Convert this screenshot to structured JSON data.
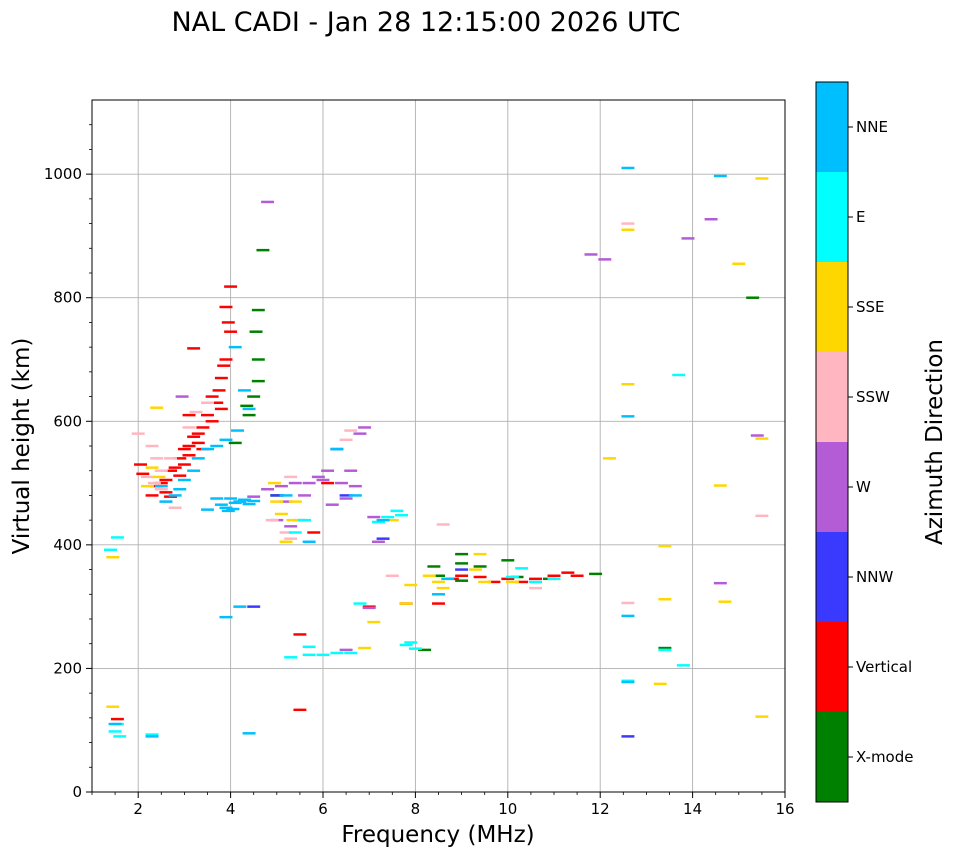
{
  "chart_data": {
    "type": "scatter",
    "title": "NAL CADI - Jan 28 12:15:00 2026 UTC",
    "xlabel": "Frequency (MHz)",
    "ylabel": "Virtual height (km)",
    "xlim": [
      1,
      16
    ],
    "ylim": [
      0,
      1120
    ],
    "xticks": [
      2,
      4,
      6,
      8,
      10,
      12,
      14,
      16
    ],
    "yticks": [
      0,
      200,
      400,
      600,
      800,
      1000
    ],
    "grid": true,
    "colorbar": {
      "label": "Azimuth Direction",
      "categories": [
        {
          "name": "X-mode",
          "color": "#008000"
        },
        {
          "name": "Vertical",
          "color": "#ff0000"
        },
        {
          "name": "NNW",
          "color": "#3a3aff"
        },
        {
          "name": "W",
          "color": "#b45bd6"
        },
        {
          "name": "SSW",
          "color": "#ffb6c1"
        },
        {
          "name": "SSE",
          "color": "#ffd700"
        },
        {
          "name": "E",
          "color": "#00ffff"
        },
        {
          "name": "NNE",
          "color": "#00bfff"
        }
      ]
    },
    "series": [
      {
        "name": "X-mode",
        "points": [
          [
            4.6,
            780
          ],
          [
            4.55,
            745
          ],
          [
            4.6,
            700
          ],
          [
            4.6,
            665
          ],
          [
            4.5,
            640
          ],
          [
            4.4,
            610
          ],
          [
            4.35,
            625
          ],
          [
            4.1,
            565
          ],
          [
            4.7,
            877
          ],
          [
            8.2,
            230
          ],
          [
            8.5,
            350
          ],
          [
            8.4,
            365
          ],
          [
            9.0,
            385
          ],
          [
            9.0,
            370
          ],
          [
            9.0,
            342
          ],
          [
            9.4,
            365
          ],
          [
            10.0,
            375
          ],
          [
            10.2,
            348
          ],
          [
            10.9,
            345
          ],
          [
            11.9,
            353
          ],
          [
            13.4,
            233
          ],
          [
            15.3,
            800
          ],
          [
            5.0,
            480
          ]
        ]
      },
      {
        "name": "Vertical",
        "points": [
          [
            4.0,
            818
          ],
          [
            3.9,
            785
          ],
          [
            3.95,
            760
          ],
          [
            4.0,
            745
          ],
          [
            3.9,
            700
          ],
          [
            3.85,
            690
          ],
          [
            3.8,
            670
          ],
          [
            3.75,
            650
          ],
          [
            3.6,
            640
          ],
          [
            3.7,
            630
          ],
          [
            3.8,
            620
          ],
          [
            3.5,
            610
          ],
          [
            3.6,
            600
          ],
          [
            3.4,
            590
          ],
          [
            3.3,
            580
          ],
          [
            3.2,
            575
          ],
          [
            3.3,
            565
          ],
          [
            3.1,
            560
          ],
          [
            3.0,
            555
          ],
          [
            3.1,
            545
          ],
          [
            2.9,
            540
          ],
          [
            3.0,
            530
          ],
          [
            2.8,
            525
          ],
          [
            2.7,
            520
          ],
          [
            2.9,
            512
          ],
          [
            2.6,
            505
          ],
          [
            2.5,
            500
          ],
          [
            2.4,
            495
          ],
          [
            2.6,
            485
          ],
          [
            2.7,
            478
          ],
          [
            2.05,
            530
          ],
          [
            2.1,
            515
          ],
          [
            3.2,
            718
          ],
          [
            3.1,
            610
          ],
          [
            3.4,
            555
          ],
          [
            2.3,
            480
          ],
          [
            1.55,
            118
          ],
          [
            5.5,
            255
          ],
          [
            5.5,
            133
          ],
          [
            7.0,
            300
          ],
          [
            7.8,
            305
          ],
          [
            8.5,
            305
          ],
          [
            8.8,
            345
          ],
          [
            9.0,
            350
          ],
          [
            9.4,
            348
          ],
          [
            9.7,
            340
          ],
          [
            10.0,
            345
          ],
          [
            10.3,
            340
          ],
          [
            10.6,
            345
          ],
          [
            11.0,
            350
          ],
          [
            11.3,
            355
          ],
          [
            11.5,
            350
          ],
          [
            5.8,
            420
          ],
          [
            6.1,
            500
          ]
        ]
      },
      {
        "name": "NNW",
        "points": [
          [
            12.6,
            90
          ],
          [
            7.3,
            410
          ],
          [
            6.3,
            555
          ],
          [
            6.5,
            480
          ],
          [
            9.0,
            360
          ],
          [
            4.5,
            300
          ],
          [
            5.0,
            480
          ]
        ]
      },
      {
        "name": "W",
        "points": [
          [
            4.8,
            955
          ],
          [
            4.2,
            470
          ],
          [
            4.5,
            478
          ],
          [
            4.8,
            490
          ],
          [
            5.1,
            495
          ],
          [
            5.4,
            500
          ],
          [
            5.2,
            470
          ],
          [
            5.0,
            440
          ],
          [
            5.3,
            430
          ],
          [
            5.6,
            480
          ],
          [
            5.9,
            510
          ],
          [
            6.1,
            520
          ],
          [
            6.4,
            500
          ],
          [
            6.6,
            520
          ],
          [
            6.7,
            495
          ],
          [
            6.5,
            475
          ],
          [
            6.2,
            465
          ],
          [
            6.8,
            580
          ],
          [
            6.9,
            590
          ],
          [
            7.1,
            445
          ],
          [
            7.2,
            405
          ],
          [
            14.6,
            338
          ],
          [
            14.4,
            927
          ],
          [
            13.9,
            896
          ],
          [
            11.8,
            870
          ],
          [
            12.1,
            862
          ],
          [
            2.95,
            640
          ],
          [
            5.7,
            500
          ],
          [
            6.0,
            505
          ],
          [
            7.0,
            298
          ],
          [
            6.5,
            230
          ],
          [
            5.5,
            440
          ],
          [
            15.4,
            577
          ]
        ]
      },
      {
        "name": "SSW",
        "points": [
          [
            2.3,
            560
          ],
          [
            2.4,
            540
          ],
          [
            2.5,
            520
          ],
          [
            2.2,
            510
          ],
          [
            2.35,
            500
          ],
          [
            2.5,
            490
          ],
          [
            2.6,
            470
          ],
          [
            2.7,
            540
          ],
          [
            2.0,
            580
          ],
          [
            2.8,
            460
          ],
          [
            3.1,
            590
          ],
          [
            3.25,
            615
          ],
          [
            3.5,
            630
          ],
          [
            12.6,
            920
          ],
          [
            12.6,
            306
          ],
          [
            15.5,
            447
          ],
          [
            6.5,
            570
          ],
          [
            6.6,
            585
          ],
          [
            4.9,
            440
          ],
          [
            5.2,
            420
          ],
          [
            5.3,
            410
          ],
          [
            7.5,
            350
          ],
          [
            8.6,
            433
          ],
          [
            10.6,
            330
          ],
          [
            5.3,
            510
          ]
        ]
      },
      {
        "name": "SSE",
        "points": [
          [
            2.4,
            622
          ],
          [
            2.3,
            525
          ],
          [
            2.45,
            510
          ],
          [
            2.2,
            495
          ],
          [
            12.6,
            660
          ],
          [
            12.6,
            910
          ],
          [
            12.2,
            540
          ],
          [
            15.0,
            855
          ],
          [
            15.5,
            993
          ],
          [
            14.6,
            496
          ],
          [
            15.5,
            572
          ],
          [
            13.4,
            398
          ],
          [
            13.4,
            312
          ],
          [
            13.3,
            175
          ],
          [
            14.7,
            308
          ],
          [
            15.5,
            122
          ],
          [
            6.9,
            233
          ],
          [
            7.1,
            275
          ],
          [
            7.8,
            305
          ],
          [
            8.5,
            340
          ],
          [
            8.6,
            330
          ],
          [
            9.3,
            360
          ],
          [
            9.4,
            385
          ],
          [
            9.5,
            340
          ],
          [
            10.1,
            340
          ],
          [
            1.45,
            380
          ],
          [
            1.45,
            138
          ],
          [
            5.0,
            470
          ],
          [
            5.1,
            450
          ],
          [
            5.35,
            440
          ],
          [
            5.4,
            470
          ],
          [
            7.5,
            440
          ],
          [
            7.9,
            335
          ],
          [
            8.3,
            350
          ],
          [
            4.95,
            500
          ],
          [
            5.2,
            405
          ]
        ]
      },
      {
        "name": "E",
        "points": [
          [
            1.5,
            98
          ],
          [
            1.55,
            110
          ],
          [
            1.6,
            90
          ],
          [
            2.3,
            93
          ],
          [
            5.3,
            218
          ],
          [
            5.7,
            235
          ],
          [
            5.7,
            222
          ],
          [
            6.0,
            222
          ],
          [
            6.3,
            225
          ],
          [
            6.6,
            225
          ],
          [
            6.8,
            305
          ],
          [
            7.8,
            238
          ],
          [
            7.9,
            242
          ],
          [
            8.0,
            232
          ],
          [
            7.4,
            445
          ],
          [
            7.6,
            455
          ],
          [
            7.7,
            448
          ],
          [
            7.2,
            437
          ],
          [
            10.1,
            348
          ],
          [
            10.3,
            362
          ],
          [
            10.6,
            340
          ],
          [
            11.0,
            345
          ],
          [
            13.7,
            675
          ],
          [
            13.8,
            205
          ],
          [
            13.4,
            230
          ],
          [
            12.6,
            180
          ],
          [
            5.6,
            440
          ],
          [
            5.4,
            420
          ],
          [
            1.55,
            412
          ],
          [
            1.4,
            392
          ]
        ]
      },
      {
        "name": "NNE",
        "points": [
          [
            3.8,
            465
          ],
          [
            3.9,
            460
          ],
          [
            4.0,
            475
          ],
          [
            4.1,
            468
          ],
          [
            4.2,
            470
          ],
          [
            4.3,
            473
          ],
          [
            4.4,
            466
          ],
          [
            4.5,
            471
          ],
          [
            3.95,
            455
          ],
          [
            4.05,
            458
          ],
          [
            3.9,
            283
          ],
          [
            4.2,
            300
          ],
          [
            4.4,
            95
          ],
          [
            2.3,
            90
          ],
          [
            1.5,
            110
          ],
          [
            4.1,
            720
          ],
          [
            4.3,
            650
          ],
          [
            4.4,
            620
          ],
          [
            4.15,
            585
          ],
          [
            3.9,
            570
          ],
          [
            3.7,
            560
          ],
          [
            3.5,
            555
          ],
          [
            3.3,
            540
          ],
          [
            3.2,
            520
          ],
          [
            3.0,
            505
          ],
          [
            2.9,
            490
          ],
          [
            2.8,
            480
          ],
          [
            2.6,
            470
          ],
          [
            2.5,
            495
          ],
          [
            12.6,
            1010
          ],
          [
            12.6,
            608
          ],
          [
            12.6,
            285
          ],
          [
            12.6,
            178
          ],
          [
            14.6,
            997
          ],
          [
            5.2,
            480
          ],
          [
            5.7,
            405
          ],
          [
            6.3,
            555
          ],
          [
            6.7,
            480
          ],
          [
            7.3,
            440
          ],
          [
            8.5,
            320
          ],
          [
            8.7,
            345
          ],
          [
            3.5,
            457
          ],
          [
            3.7,
            475
          ]
        ]
      }
    ]
  }
}
